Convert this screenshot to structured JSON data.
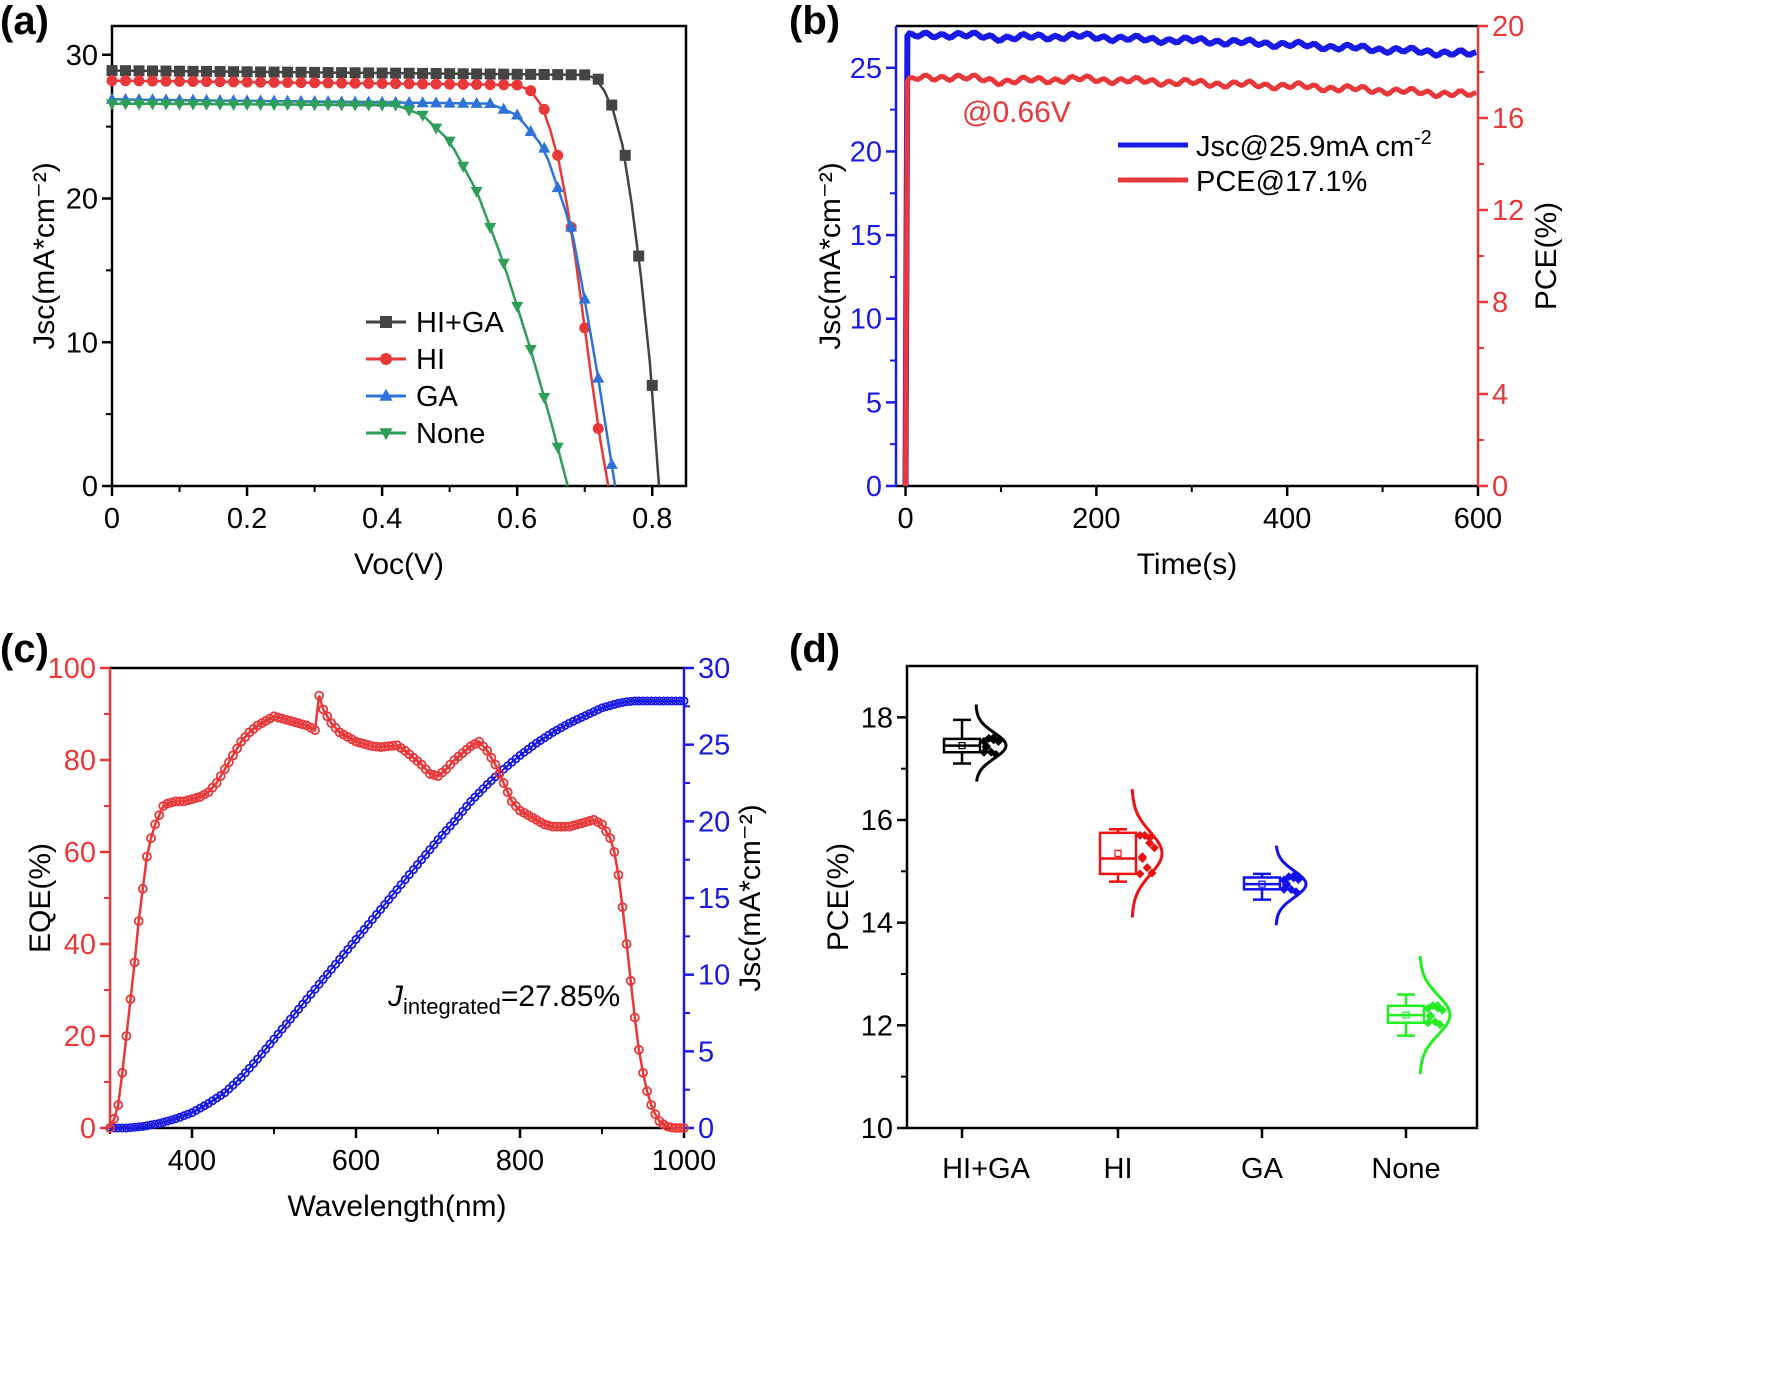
{
  "chart_data": [
    {
      "panel": "(a)",
      "type": "line",
      "xlabel": "Voc(V)",
      "ylabel": "Jsc(mA*cm⁻²)",
      "xlim": [
        0,
        0.85
      ],
      "ylim": [
        0,
        32
      ],
      "xticks": [
        0,
        0.2,
        0.4,
        0.6,
        0.8
      ],
      "xtick_labels": [
        "0",
        "0.2",
        "0.4",
        "0.6",
        "0.8"
      ],
      "yticks": [
        0,
        10,
        20,
        30
      ],
      "legend_position": "center-right",
      "series": [
        {
          "name": "HI+GA",
          "color": "#444444",
          "marker": "square",
          "voc": 0.81,
          "jsc": 28.9,
          "knee": [
            [
              0.7,
              28.6
            ],
            [
              0.72,
              28.3
            ],
            [
              0.74,
              26.5
            ],
            [
              0.76,
              23.0
            ],
            [
              0.78,
              16.0
            ],
            [
              0.8,
              7.0
            ],
            [
              0.81,
              0
            ]
          ]
        },
        {
          "name": "HI",
          "color": "#e8383a",
          "marker": "circle",
          "voc": 0.735,
          "jsc": 28.2,
          "knee": [
            [
              0.6,
              27.9
            ],
            [
              0.62,
              27.5
            ],
            [
              0.64,
              26.2
            ],
            [
              0.66,
              23.0
            ],
            [
              0.68,
              18.0
            ],
            [
              0.7,
              11.0
            ],
            [
              0.72,
              4.0
            ],
            [
              0.735,
              0
            ]
          ]
        },
        {
          "name": "GA",
          "color": "#2f73d8",
          "marker": "triangle-up",
          "voc": 0.745,
          "jsc": 26.9,
          "knee": [
            [
              0.56,
              26.6
            ],
            [
              0.6,
              25.8
            ],
            [
              0.64,
              23.5
            ],
            [
              0.68,
              18.0
            ],
            [
              0.7,
              13.0
            ],
            [
              0.72,
              7.5
            ],
            [
              0.745,
              0
            ]
          ]
        },
        {
          "name": "None",
          "color": "#2e9e59",
          "marker": "triangle-down",
          "voc": 0.675,
          "jsc": 26.6,
          "knee": [
            [
              0.42,
              26.5
            ],
            [
              0.46,
              25.8
            ],
            [
              0.5,
              24.0
            ],
            [
              0.54,
              20.5
            ],
            [
              0.58,
              15.5
            ],
            [
              0.62,
              9.5
            ],
            [
              0.65,
              4.5
            ],
            [
              0.675,
              0
            ]
          ]
        }
      ]
    },
    {
      "panel": "(b)",
      "type": "line",
      "xlabel": "Time(s)",
      "ylabel_left": "Jsc(mA*cm⁻²)",
      "ylabel_right": "PCE(%)",
      "xlim": [
        -10,
        600
      ],
      "ylim_left": [
        0,
        27.5
      ],
      "ylim_right": [
        0,
        20
      ],
      "xticks": [
        0,
        200,
        400,
        600
      ],
      "yticks_left": [
        0,
        5,
        10,
        15,
        20,
        25
      ],
      "yticks_right": [
        0,
        4,
        8,
        12,
        16,
        20
      ],
      "annotation": "@0.66V",
      "legend_position": "top-right",
      "series": [
        {
          "name": "Jsc@25.9mA cm",
          "name_superscript": "-2",
          "color": "#1a1ae6",
          "axis": "left",
          "x": [
            0,
            2,
            10,
            50,
            100,
            180,
            250,
            320,
            400,
            500,
            600
          ],
          "y": [
            0,
            26.9,
            26.9,
            27.0,
            26.8,
            26.9,
            26.7,
            26.6,
            26.4,
            26.1,
            25.8
          ]
        },
        {
          "name": "PCE@17.1%",
          "color": "#e8383a",
          "axis": "right",
          "x": [
            0,
            2,
            10,
            50,
            100,
            180,
            250,
            320,
            400,
            500,
            600
          ],
          "y": [
            0,
            17.6,
            17.7,
            17.8,
            17.6,
            17.7,
            17.6,
            17.5,
            17.4,
            17.2,
            17.0
          ]
        }
      ]
    },
    {
      "panel": "(c)",
      "type": "line",
      "xlabel": "Wavelength(nm)",
      "ylabel_left": "EQE(%)",
      "ylabel_right": "Jsc(mA*cm⁻²)",
      "xlim": [
        300,
        1000
      ],
      "ylim_left": [
        0,
        100
      ],
      "ylim_right": [
        0,
        30
      ],
      "xticks": [
        400,
        600,
        800,
        1000
      ],
      "yticks_left": [
        0,
        20,
        40,
        60,
        80,
        100
      ],
      "yticks_right": [
        0,
        5,
        10,
        15,
        20,
        25,
        30
      ],
      "annotation_main": "J",
      "annotation_sub": "integrated",
      "annotation_tail": "=27.85%",
      "series": [
        {
          "name": "EQE",
          "color": "#e8383a",
          "axis": "left",
          "x": [
            300,
            305,
            310,
            315,
            320,
            325,
            330,
            335,
            340,
            345,
            350,
            355,
            360,
            365,
            370,
            380,
            390,
            400,
            410,
            420,
            430,
            440,
            450,
            460,
            470,
            480,
            490,
            500,
            510,
            520,
            530,
            540,
            550,
            555,
            560,
            570,
            580,
            590,
            600,
            610,
            620,
            630,
            640,
            650,
            660,
            670,
            680,
            690,
            700,
            710,
            720,
            730,
            740,
            750,
            760,
            770,
            780,
            790,
            800,
            810,
            820,
            830,
            840,
            850,
            860,
            870,
            880,
            890,
            900,
            910,
            915,
            920,
            925,
            930,
            935,
            940,
            945,
            950,
            955,
            960,
            965,
            970,
            975,
            980,
            985,
            990,
            995,
            1000
          ],
          "y": [
            0,
            2,
            5,
            12,
            20,
            28,
            36,
            45,
            52,
            59,
            63,
            66,
            68,
            70,
            70.5,
            71,
            71,
            71.5,
            72,
            73,
            75,
            78,
            81,
            84,
            86,
            87.5,
            88.5,
            89.5,
            89,
            88.5,
            88,
            87.5,
            86.5,
            94,
            91,
            88,
            86,
            85,
            84,
            83.5,
            83,
            82.8,
            83,
            83.2,
            82,
            80.5,
            79,
            77,
            76.5,
            78,
            80,
            81.5,
            83,
            84,
            82,
            79,
            75,
            71,
            69,
            68,
            67,
            66,
            65.5,
            65.5,
            65.5,
            66,
            66.5,
            67,
            66,
            63,
            60,
            55,
            48,
            40,
            32,
            24,
            17,
            12,
            8,
            5,
            3,
            1.5,
            0.8,
            0.3,
            0.1,
            0,
            0,
            0
          ]
        },
        {
          "name": "Jsc",
          "color": "#1a1ae6",
          "axis": "right",
          "x": [
            300,
            320,
            340,
            360,
            380,
            400,
            420,
            440,
            460,
            480,
            500,
            520,
            540,
            560,
            580,
            600,
            620,
            640,
            660,
            680,
            700,
            720,
            740,
            760,
            780,
            800,
            820,
            840,
            860,
            880,
            900,
            920,
            930,
            940,
            960,
            980,
            1000
          ],
          "y": [
            0,
            0,
            0.1,
            0.3,
            0.6,
            1.0,
            1.6,
            2.3,
            3.3,
            4.5,
            5.8,
            7.1,
            8.4,
            9.7,
            11.0,
            12.3,
            13.6,
            14.9,
            16.2,
            17.5,
            18.8,
            20.0,
            21.3,
            22.4,
            23.4,
            24.3,
            25.1,
            25.8,
            26.4,
            26.9,
            27.4,
            27.7,
            27.8,
            27.85,
            27.85,
            27.85,
            27.85
          ]
        }
      ]
    },
    {
      "panel": "(d)",
      "type": "box",
      "xlabel": "",
      "ylabel": "PCE(%)",
      "ylim": [
        10,
        19
      ],
      "yticks": [
        10,
        12,
        14,
        16,
        18
      ],
      "categories": [
        "HI+GA",
        "HI",
        "GA",
        "None"
      ],
      "colors": [
        "#000000",
        "#ee1111",
        "#1111ee",
        "#22ee22"
      ],
      "boxes": [
        {
          "min": 17.1,
          "q1": 17.32,
          "median": 17.45,
          "q3": 17.58,
          "max": 17.95,
          "dist_min": 16.75,
          "dist_max": 18.25,
          "center": 17.45
        },
        {
          "min": 14.8,
          "q1": 14.95,
          "median": 15.25,
          "q3": 15.75,
          "max": 15.82,
          "dist_min": 14.1,
          "dist_max": 16.6,
          "center": 15.35
        },
        {
          "min": 14.45,
          "q1": 14.65,
          "median": 14.75,
          "q3": 14.88,
          "max": 14.95,
          "dist_min": 13.95,
          "dist_max": 15.5,
          "center": 14.75
        },
        {
          "min": 11.8,
          "q1": 12.05,
          "median": 12.2,
          "q3": 12.38,
          "max": 12.6,
          "dist_min": 11.05,
          "dist_max": 13.35,
          "center": 12.2
        }
      ]
    }
  ]
}
